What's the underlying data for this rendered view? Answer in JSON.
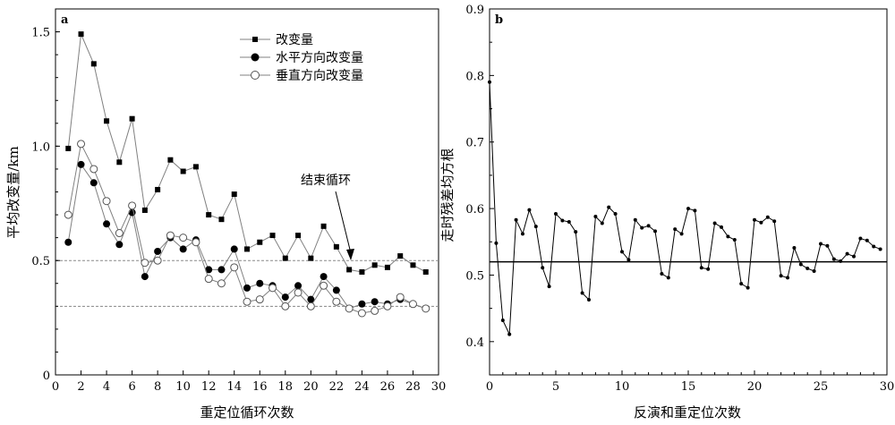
{
  "chart_data": [
    {
      "type": "line",
      "panel_label": "a",
      "xlabel": "重定位循环次数",
      "ylabel": "平均改变量/km",
      "xlim": [
        0,
        30
      ],
      "ylim": [
        0,
        1.6
      ],
      "x_ticks": [
        0,
        2,
        4,
        6,
        8,
        10,
        12,
        14,
        16,
        18,
        20,
        22,
        24,
        26,
        28,
        30
      ],
      "y_ticks": [
        "0",
        "0.5",
        "1.0",
        "1.5"
      ],
      "y_tick_values": [
        0,
        0.5,
        1.0,
        1.5
      ],
      "reference_lines": [
        0.5,
        0.3
      ],
      "legend_position": "top-right",
      "annotation": "结束循环",
      "annotation_target": [
        24.3,
        0.5
      ],
      "x": [
        1,
        2,
        3,
        4,
        5,
        6,
        7,
        8,
        9,
        10,
        11,
        12,
        13,
        14,
        15,
        16,
        17,
        18,
        19,
        20,
        21,
        22,
        23,
        24,
        25,
        26,
        27,
        28,
        29
      ],
      "series": [
        {
          "name": "改变量",
          "marker": "square",
          "color": "#808080",
          "values": [
            0.99,
            1.49,
            1.36,
            1.11,
            0.93,
            1.12,
            0.72,
            0.81,
            0.94,
            0.89,
            0.91,
            0.7,
            0.68,
            0.79,
            0.55,
            0.58,
            0.61,
            0.51,
            0.61,
            0.51,
            0.65,
            0.56,
            0.46,
            0.45,
            0.48,
            0.47,
            0.52,
            0.48,
            0.45
          ]
        },
        {
          "name": "水平方向改变量",
          "marker": "filled-circle",
          "color": "#808080",
          "values": [
            0.58,
            0.92,
            0.84,
            0.66,
            0.57,
            0.71,
            0.43,
            0.54,
            0.6,
            0.55,
            0.59,
            0.46,
            0.46,
            0.55,
            0.38,
            0.4,
            0.39,
            0.34,
            0.39,
            0.33,
            0.43,
            0.37,
            0.29,
            0.31,
            0.32,
            0.31,
            0.33,
            0.31,
            0.29
          ]
        },
        {
          "name": "垂直方向改变量",
          "marker": "open-circle",
          "color": "#808080",
          "values": [
            0.7,
            1.01,
            0.9,
            0.76,
            0.62,
            0.74,
            0.49,
            0.5,
            0.61,
            0.6,
            0.58,
            0.42,
            0.4,
            0.47,
            0.32,
            0.33,
            0.38,
            0.3,
            0.36,
            0.3,
            0.39,
            0.32,
            0.29,
            0.27,
            0.28,
            0.3,
            0.34,
            0.31,
            0.29
          ]
        }
      ]
    },
    {
      "type": "line",
      "panel_label": "b",
      "xlabel": "反演和重定位次数",
      "ylabel": "走时残差均方根",
      "xlim": [
        0,
        30
      ],
      "ylim": [
        0.35,
        0.9
      ],
      "x_ticks": [
        0,
        5,
        10,
        15,
        20,
        25,
        30
      ],
      "y_ticks": [
        "0.4",
        "0.5",
        "0.6",
        "0.7",
        "0.8",
        "0.9"
      ],
      "y_tick_values": [
        0.4,
        0.5,
        0.6,
        0.7,
        0.8,
        0.9
      ],
      "reference_lines": [
        0.52
      ],
      "x": [
        0,
        0.5,
        1.0,
        1.5,
        2.0,
        2.5,
        3.0,
        3.5,
        4.0,
        4.5,
        5.0,
        5.5,
        6.0,
        6.5,
        7.0,
        7.5,
        8.0,
        8.5,
        9.0,
        9.5,
        10.0,
        10.5,
        11.0,
        11.5,
        12.0,
        12.5,
        13.0,
        13.5,
        14.0,
        14.5,
        15.0,
        15.5,
        16.0,
        16.5,
        17.0,
        17.5,
        18.0,
        18.5,
        19.0,
        19.5,
        20.0,
        20.5,
        21.0,
        21.5,
        22.0,
        22.5,
        23.0,
        23.5,
        24.0,
        24.5,
        25.0,
        25.5,
        26.0,
        26.5,
        27.0,
        27.5,
        28.0,
        28.5,
        29.0,
        29.5
      ],
      "series": [
        {
          "marker": "dot",
          "color": "#000000",
          "values": [
            0.79,
            0.548,
            0.432,
            0.411,
            0.583,
            0.562,
            0.598,
            0.573,
            0.511,
            0.483,
            0.592,
            0.582,
            0.58,
            0.565,
            0.473,
            0.463,
            0.588,
            0.578,
            0.602,
            0.592,
            0.535,
            0.523,
            0.583,
            0.571,
            0.574,
            0.566,
            0.502,
            0.496,
            0.569,
            0.562,
            0.6,
            0.597,
            0.511,
            0.509,
            0.578,
            0.572,
            0.558,
            0.553,
            0.487,
            0.481,
            0.583,
            0.579,
            0.587,
            0.581,
            0.499,
            0.496,
            0.541,
            0.516,
            0.51,
            0.506,
            0.547,
            0.544,
            0.524,
            0.521,
            0.532,
            0.528,
            0.555,
            0.552,
            0.543,
            0.539
          ]
        }
      ]
    }
  ]
}
